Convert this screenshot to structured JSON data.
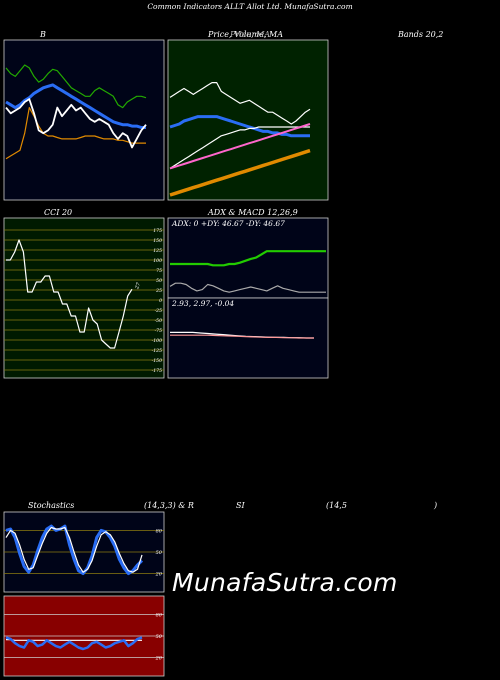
{
  "header": {
    "title": "Common Indicators ALLT Allot Ltd. MunafaSutra.com"
  },
  "watermark": "MunafaSutra.com",
  "colors": {
    "bb_bg": "#000418",
    "ma_bg": "#002200",
    "cci_bg": "#001a00",
    "cci_grid": "#8a7a10",
    "adx_bg": "#000418",
    "stoch_bg": "#000418",
    "rsi_bg": "#880000",
    "blue": "#2a6df4",
    "green": "#22cc00",
    "orange": "#e08a00",
    "pink": "#ff66cc",
    "white": "#ffffff"
  },
  "panels": {
    "bb": {
      "title": "B",
      "title_right": "Bands 20,2"
    },
    "ma": {
      "title": "Price, Volume, MA",
      "title_overlap": "Price,  MA"
    },
    "cci": {
      "title": "CCI 20"
    },
    "adx": {
      "title": "ADX  & MACD 12,26,9",
      "readout": "ADX: 0  +DY: 46.67 -DY: 46.67"
    },
    "macd": {
      "readout": "2.93,  2.97,  -0.04"
    },
    "stoch": {
      "title": "Stochastics",
      "params": "(14,3,3) & R",
      "title2": "SI",
      "params2": "(14,5",
      "close": ")"
    },
    "rsi": {}
  },
  "chart_data": [
    {
      "type": "line",
      "panel": "bollinger_bands",
      "ylim": [
        0,
        100
      ],
      "series": [
        {
          "role": "upper",
          "color": "#22aa00",
          "values": [
            86,
            82,
            80,
            84,
            88,
            86,
            80,
            76,
            78,
            82,
            85,
            84,
            80,
            76,
            72,
            70,
            68,
            66,
            66,
            70,
            72,
            70,
            68,
            66,
            60,
            58,
            62,
            64,
            66,
            66,
            65
          ]
        },
        {
          "role": "middle",
          "color": "#2a6df4",
          "values": [
            62,
            60,
            58,
            60,
            63,
            65,
            68,
            70,
            72,
            73,
            74,
            72,
            70,
            68,
            66,
            64,
            62,
            60,
            58,
            56,
            54,
            52,
            50,
            48,
            47,
            46,
            46,
            45,
            45,
            44,
            44
          ]
        },
        {
          "role": "lower",
          "color": "#e08a00",
          "values": [
            22,
            24,
            26,
            28,
            40,
            58,
            52,
            45,
            40,
            38,
            38,
            37,
            36,
            36,
            36,
            36,
            37,
            38,
            38,
            38,
            37,
            36,
            36,
            36,
            35,
            35,
            34,
            33,
            33,
            33,
            33
          ]
        },
        {
          "role": "price",
          "color": "#ffffff",
          "values": [
            58,
            54,
            56,
            58,
            62,
            64,
            54,
            42,
            40,
            42,
            46,
            58,
            52,
            56,
            60,
            56,
            58,
            54,
            50,
            48,
            50,
            48,
            46,
            40,
            36,
            40,
            38,
            30,
            36,
            42,
            46
          ]
        }
      ]
    },
    {
      "type": "line",
      "panel": "price_volume_ma",
      "ylim": [
        0,
        100
      ],
      "series": [
        {
          "role": "price",
          "color": "#ffffff",
          "values": [
            68,
            70,
            72,
            74,
            72,
            70,
            72,
            74,
            76,
            78,
            78,
            72,
            70,
            68,
            66,
            64,
            65,
            66,
            64,
            62,
            60,
            58,
            58,
            56,
            54,
            52,
            50,
            52,
            55,
            58,
            60
          ]
        },
        {
          "role": "ma_a",
          "color": "#2a6df4",
          "values": [
            48,
            49,
            50,
            52,
            53,
            54,
            55,
            55,
            55,
            55,
            55,
            54,
            53,
            52,
            51,
            50,
            49,
            48,
            47,
            46,
            45,
            45,
            44,
            44,
            43,
            43,
            42,
            42,
            42,
            42,
            42
          ]
        },
        {
          "role": "ma_b",
          "color": "#ffffff",
          "values": [
            20,
            22,
            24,
            26,
            28,
            30,
            32,
            34,
            36,
            38,
            40,
            42,
            43,
            44,
            45,
            46,
            46,
            47,
            47,
            48,
            48,
            48,
            48,
            48,
            48,
            48,
            48,
            48,
            48,
            48,
            48
          ]
        },
        {
          "role": "ma_c",
          "color": "#ff66cc",
          "values": [
            20,
            21,
            22,
            23,
            24,
            25,
            26,
            27,
            28,
            29,
            30,
            31,
            32,
            33,
            34,
            35,
            36,
            37,
            38,
            39,
            40,
            41,
            42,
            43,
            44,
            45,
            46,
            47,
            48,
            49,
            50
          ]
        },
        {
          "role": "ma_d",
          "color": "#e08a00",
          "values": [
            2,
            3,
            4,
            5,
            6,
            7,
            8,
            9,
            10,
            11,
            12,
            13,
            14,
            15,
            16,
            17,
            18,
            19,
            20,
            21,
            22,
            23,
            24,
            25,
            26,
            27,
            28,
            29,
            30,
            31,
            32
          ]
        }
      ]
    },
    {
      "type": "line",
      "panel": "cci",
      "ylim": [
        -175,
        175
      ],
      "tick_labels": [
        "175",
        "150",
        "125",
        "100",
        "75",
        "50",
        "25",
        "0",
        "-25",
        "-50",
        "-75",
        "-100",
        "-125",
        "-150",
        "-175"
      ],
      "last_value_label": "27",
      "series": [
        {
          "name": "",
          "color": "#ffffff",
          "values": [
            100,
            100,
            120,
            150,
            120,
            20,
            20,
            45,
            45,
            60,
            60,
            20,
            20,
            -10,
            -10,
            -40,
            -40,
            -80,
            -80,
            -20,
            -50,
            -60,
            -100,
            -110,
            -120,
            -120,
            -80,
            -40,
            10,
            27
          ]
        }
      ]
    },
    {
      "type": "line",
      "panel": "adx",
      "ylim": [
        0,
        100
      ],
      "series": [
        {
          "role": "adx",
          "color": "#22cc00",
          "values": [
            50,
            50,
            50,
            50,
            50,
            50,
            50,
            50,
            48,
            48,
            48,
            50,
            50,
            52,
            55,
            58,
            60,
            65,
            70,
            70,
            70,
            70,
            70,
            70,
            70,
            70,
            70,
            70,
            70,
            70
          ]
        },
        {
          "role": "di",
          "color": "#aaaaaa",
          "values": [
            15,
            20,
            20,
            18,
            12,
            8,
            10,
            18,
            16,
            12,
            8,
            6,
            8,
            10,
            12,
            14,
            12,
            10,
            8,
            12,
            16,
            12,
            10,
            8,
            6,
            6,
            6,
            6,
            6,
            6
          ]
        }
      ]
    },
    {
      "type": "line",
      "panel": "macd",
      "ylim": [
        -1,
        1
      ],
      "series": [
        {
          "role": "macd",
          "color": "#ffffff",
          "values": [
            0.2,
            0.2,
            0.2,
            0.2,
            0.18,
            0.16,
            0.14,
            0.12,
            0.1,
            0.08,
            0.06,
            0.05,
            0.04,
            0.03,
            0.02,
            0.02,
            0.01,
            0.01,
            0.0,
            0.0
          ]
        },
        {
          "role": "signal",
          "color": "#ff9999",
          "values": [
            0.1,
            0.1,
            0.1,
            0.1,
            0.1,
            0.1,
            0.09,
            0.08,
            0.07,
            0.06,
            0.05,
            0.04,
            0.03,
            0.02,
            0.02,
            0.01,
            0.01,
            0.0,
            0.0,
            0.0
          ]
        }
      ]
    },
    {
      "type": "line",
      "panel": "stochastics",
      "ylim": [
        0,
        100
      ],
      "tick_labels": [
        "80",
        "50",
        "20"
      ],
      "series": [
        {
          "role": "k",
          "color": "#2a6df4",
          "values": [
            80,
            82,
            70,
            48,
            30,
            22,
            32,
            52,
            70,
            82,
            86,
            80,
            82,
            86,
            60,
            40,
            24,
            20,
            28,
            45,
            70,
            80,
            78,
            70,
            58,
            40,
            28,
            20,
            24,
            32,
            38
          ]
        },
        {
          "role": "d",
          "color": "#ffffff",
          "values": [
            70,
            80,
            76,
            60,
            40,
            26,
            28,
            45,
            62,
            76,
            84,
            82,
            82,
            84,
            70,
            50,
            32,
            22,
            26,
            38,
            58,
            74,
            78,
            74,
            64,
            48,
            34,
            24,
            22,
            26,
            46
          ]
        }
      ]
    },
    {
      "type": "line",
      "panel": "rsi",
      "ylim": [
        0,
        100
      ],
      "tick_labels": [
        "80",
        "50",
        "20"
      ],
      "series": [
        {
          "role": "rsi",
          "color": "#ffffff",
          "values": [
            45,
            45,
            44,
            44,
            44,
            44,
            44,
            44,
            44,
            44,
            44,
            44,
            44,
            44,
            44,
            44,
            44,
            44,
            44,
            44,
            44,
            44,
            44,
            44,
            44,
            44,
            44,
            44,
            44,
            44,
            44
          ]
        },
        {
          "role": "rsi_smooth",
          "color": "#2a6df4",
          "values": [
            48,
            46,
            40,
            36,
            34,
            44,
            42,
            36,
            38,
            44,
            40,
            36,
            34,
            38,
            42,
            38,
            34,
            32,
            34,
            40,
            42,
            38,
            34,
            36,
            40,
            42,
            44,
            36,
            40,
            46,
            48
          ]
        }
      ]
    }
  ]
}
